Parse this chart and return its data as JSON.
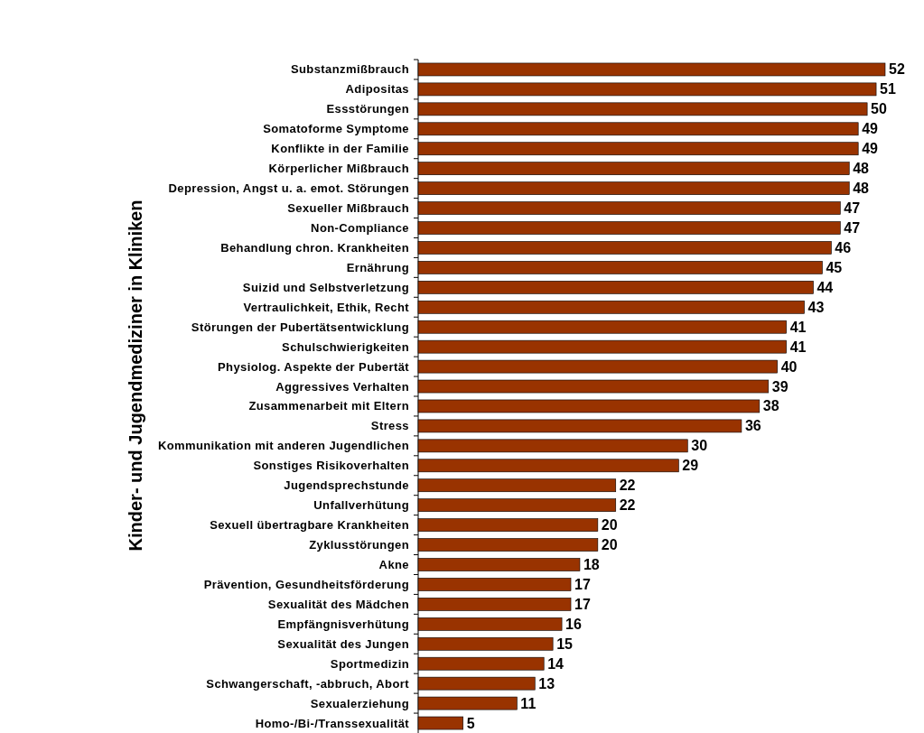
{
  "chart_data": {
    "type": "bar",
    "orientation": "horizontal",
    "ylabel": "Kinder- und Jugendmediziner in Kliniken",
    "categories": [
      "Substanzmißbrauch",
      "Adipositas",
      "Essstörungen",
      "Somatoforme Symptome",
      "Konflikte in der Familie",
      "Körperlicher Mißbrauch",
      "Depression, Angst u. a. emot. Störungen",
      "Sexueller Mißbrauch",
      "Non-Compliance",
      "Behandlung chron. Krankheiten",
      "Ernährung",
      "Suizid und Selbstverletzung",
      "Vertraulichkeit, Ethik, Recht",
      "Störungen der Pubertätsentwicklung",
      "Schulschwierigkeiten",
      "Physiolog. Aspekte der Pubertät",
      "Aggressives Verhalten",
      "Zusammenarbeit mit Eltern",
      "Stress",
      "Kommunikation mit anderen Jugendlichen",
      "Sonstiges Risikoverhalten",
      "Jugendsprechstunde",
      "Unfallverhütung",
      "Sexuell übertragbare Krankheiten",
      "Zyklusstörungen",
      "Akne",
      "Prävention, Gesundheitsförderung",
      "Sexualität des Mädchen",
      "Empfängnisverhütung",
      "Sexualität des Jungen",
      "Sportmedizin",
      "Schwangerschaft, -abbruch, Abort",
      "Sexualerziehung",
      "Homo-/Bi-/Transsexualität"
    ],
    "values": [
      52,
      51,
      50,
      49,
      49,
      48,
      48,
      47,
      47,
      46,
      45,
      44,
      43,
      41,
      41,
      40,
      39,
      38,
      36,
      30,
      29,
      22,
      22,
      20,
      20,
      18,
      17,
      17,
      16,
      15,
      14,
      13,
      11,
      5
    ],
    "color": "#993300",
    "data_labels": true
  }
}
